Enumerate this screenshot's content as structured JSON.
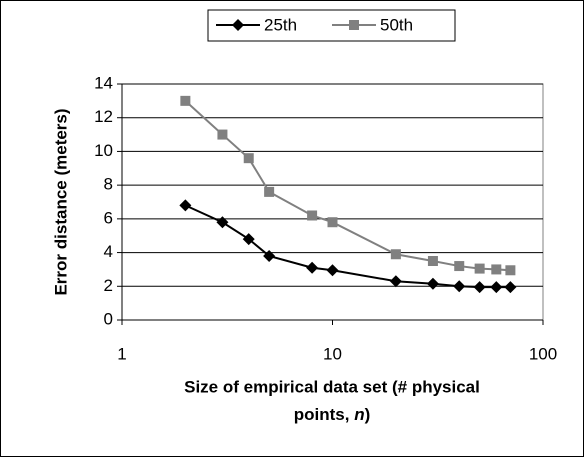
{
  "chart_data": {
    "type": "line",
    "ylabel": "Error distance (meters)",
    "xlabel": [
      "Size of empirical data set (# physical",
      "points, ",
      "n",
      ")"
    ],
    "x": [
      2,
      3,
      4,
      5,
      8,
      10,
      20,
      30,
      40,
      50,
      60,
      70
    ],
    "series": [
      {
        "name": "25th",
        "color": "#000000",
        "marker": "diamond",
        "values": [
          6.8,
          5.8,
          4.8,
          3.8,
          3.1,
          2.95,
          2.3,
          2.15,
          2.0,
          1.95,
          1.95,
          1.95
        ]
      },
      {
        "name": "50th",
        "color": "#808080",
        "marker": "square",
        "values": [
          13,
          11,
          9.6,
          7.6,
          6.2,
          5.8,
          3.9,
          3.5,
          3.2,
          3.05,
          3.0,
          2.95
        ]
      }
    ],
    "xscale": "log",
    "xlim": [
      1,
      100
    ],
    "xticks": [
      1,
      10,
      100
    ],
    "ylim": [
      0,
      14
    ],
    "yticks": [
      0,
      2,
      4,
      6,
      8,
      10,
      12,
      14
    ],
    "grid": true,
    "legend": "top"
  }
}
